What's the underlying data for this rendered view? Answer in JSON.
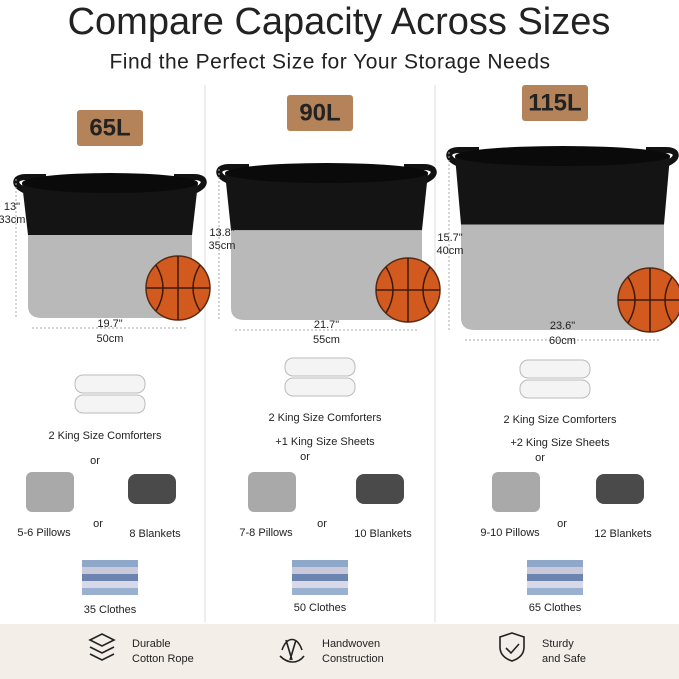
{
  "header": {
    "title": "Compare Capacity Across Sizes",
    "subtitle": "Find the Perfect Size for Your Storage Needs"
  },
  "columns": [
    {
      "size": "65L",
      "height_in": "13\"",
      "height_cm": "33cm",
      "width_in": "19.7\"",
      "width_cm": "50cm",
      "comforters": "2 King Size Comforters",
      "or": "or",
      "pillows": "5-6 Pillows",
      "or_2": "or",
      "blankets": "8 Blankets",
      "clothes": "35 Clothes"
    },
    {
      "size": "90L",
      "height_in": "13.8\"",
      "height_cm": "35cm",
      "width_in": "21.7\"",
      "width_cm": "55cm",
      "comforters": "2 King Size Comforters",
      "sheets": "+1 King Size Sheets",
      "or": "or",
      "pillows": "7-8 Pillows",
      "or_2": "or",
      "blankets": "10 Blankets",
      "clothes": "50 Clothes"
    },
    {
      "size": "115L",
      "height_in": "15.7\"",
      "height_cm": "40cm",
      "width_in": "23.6\"",
      "width_cm": "60cm",
      "comforters": "2 King Size Comforters",
      "sheets": "+2 King Size Sheets",
      "or": "or",
      "pillows": "9-10 Pillows",
      "or_2": "or",
      "blankets": "12 Blankets",
      "clothes": "65 Clothes"
    }
  ],
  "features": [
    {
      "line1": "Durable",
      "line2": "Cotton Rope"
    },
    {
      "line1": "Handwoven",
      "line2": "Construction"
    },
    {
      "line1": "Sturdy",
      "line2": "and Safe"
    }
  ]
}
